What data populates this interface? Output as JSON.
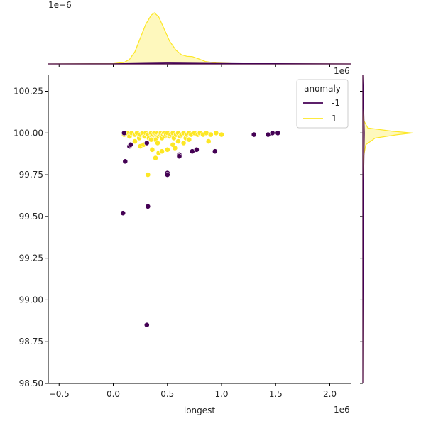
{
  "chart_data": {
    "type": "scatter",
    "title": "",
    "xlabel": "longest",
    "ylabel": "",
    "x_offset_text": "1e6",
    "y_offset_text": "",
    "top_marginal_offset_text": "1e−6",
    "right_marginal_offset_text": "1e6",
    "xlim": [
      -0.6,
      2.2
    ],
    "ylim": [
      98.5,
      100.35
    ],
    "x_ticks": [
      -0.5,
      0.0,
      0.5,
      1.0,
      1.5,
      2.0
    ],
    "x_tick_labels": [
      "−0.5",
      "0.0",
      "0.5",
      "1.0",
      "1.5",
      "2.0"
    ],
    "y_ticks": [
      98.5,
      98.75,
      99.0,
      99.25,
      99.5,
      99.75,
      100.0,
      100.25
    ],
    "y_tick_labels": [
      "98.50",
      "98.75",
      "99.00",
      "99.25",
      "99.50",
      "99.75",
      "100.00",
      "100.25"
    ],
    "grid": false,
    "legend": {
      "title": "anomaly",
      "placement": "top-right",
      "entries": [
        {
          "label": "-1",
          "color": "#440154"
        },
        {
          "label": "1",
          "color": "#fde725"
        }
      ]
    },
    "series": [
      {
        "name": "-1",
        "color": "#440154",
        "points": [
          [
            0.09,
            99.52
          ],
          [
            0.11,
            99.83
          ],
          [
            0.15,
            99.92
          ],
          [
            0.16,
            99.93
          ],
          [
            0.31,
            99.94
          ],
          [
            0.32,
            99.56
          ],
          [
            0.31,
            98.85
          ],
          [
            0.5,
            99.76
          ],
          [
            0.5,
            99.75
          ],
          [
            0.61,
            99.87
          ],
          [
            0.61,
            99.86
          ],
          [
            0.73,
            99.89
          ],
          [
            0.77,
            99.9
          ],
          [
            0.94,
            99.89
          ],
          [
            1.3,
            99.99
          ],
          [
            1.43,
            99.99
          ],
          [
            1.47,
            100.0
          ],
          [
            1.52,
            100.0
          ],
          [
            0.1,
            100.0
          ]
        ]
      },
      {
        "name": "1",
        "color": "#fde725",
        "points": [
          [
            0.1,
            99.99
          ],
          [
            0.13,
            100.0
          ],
          [
            0.15,
            99.98
          ],
          [
            0.17,
            100.0
          ],
          [
            0.2,
            99.99
          ],
          [
            0.22,
            100.0
          ],
          [
            0.24,
            99.97
          ],
          [
            0.25,
            99.99
          ],
          [
            0.27,
            100.0
          ],
          [
            0.29,
            99.98
          ],
          [
            0.3,
            100.0
          ],
          [
            0.32,
            99.99
          ],
          [
            0.33,
            99.97
          ],
          [
            0.35,
            100.0
          ],
          [
            0.36,
            99.98
          ],
          [
            0.37,
            99.99
          ],
          [
            0.38,
            100.0
          ],
          [
            0.39,
            99.96
          ],
          [
            0.4,
            99.99
          ],
          [
            0.41,
            100.0
          ],
          [
            0.42,
            99.98
          ],
          [
            0.43,
            99.99
          ],
          [
            0.44,
            100.0
          ],
          [
            0.45,
            99.97
          ],
          [
            0.46,
            99.99
          ],
          [
            0.47,
            100.0
          ],
          [
            0.48,
            99.98
          ],
          [
            0.49,
            99.99
          ],
          [
            0.5,
            100.0
          ],
          [
            0.52,
            99.98
          ],
          [
            0.53,
            99.99
          ],
          [
            0.55,
            100.0
          ],
          [
            0.56,
            99.97
          ],
          [
            0.58,
            99.99
          ],
          [
            0.6,
            100.0
          ],
          [
            0.62,
            99.98
          ],
          [
            0.63,
            99.99
          ],
          [
            0.65,
            100.0
          ],
          [
            0.67,
            99.97
          ],
          [
            0.68,
            99.99
          ],
          [
            0.7,
            100.0
          ],
          [
            0.72,
            99.99
          ],
          [
            0.75,
            100.0
          ],
          [
            0.78,
            99.99
          ],
          [
            0.8,
            100.0
          ],
          [
            0.83,
            99.99
          ],
          [
            0.86,
            100.0
          ],
          [
            0.9,
            99.99
          ],
          [
            0.95,
            100.0
          ],
          [
            1.0,
            99.99
          ],
          [
            0.25,
            99.92
          ],
          [
            0.28,
            99.93
          ],
          [
            0.36,
            99.9
          ],
          [
            0.39,
            99.85
          ],
          [
            0.42,
            99.88
          ],
          [
            0.45,
            99.89
          ],
          [
            0.5,
            99.9
          ],
          [
            0.55,
            99.93
          ],
          [
            0.57,
            99.91
          ],
          [
            0.65,
            99.94
          ],
          [
            0.7,
            99.96
          ],
          [
            0.88,
            99.95
          ],
          [
            0.32,
            99.75
          ],
          [
            0.2,
            99.95
          ],
          [
            0.35,
            99.96
          ],
          [
            0.6,
            99.95
          ],
          [
            0.41,
            99.94
          ]
        ]
      }
    ],
    "top_marginal": {
      "type": "kde",
      "series_yellow": [
        [
          -0.6,
          0
        ],
        [
          0.0,
          0.01
        ],
        [
          0.1,
          0.05
        ],
        [
          0.15,
          0.15
        ],
        [
          0.2,
          0.4
        ],
        [
          0.25,
          0.85
        ],
        [
          0.3,
          1.3
        ],
        [
          0.35,
          1.6
        ],
        [
          0.38,
          1.68
        ],
        [
          0.42,
          1.55
        ],
        [
          0.47,
          1.15
        ],
        [
          0.52,
          0.75
        ],
        [
          0.58,
          0.45
        ],
        [
          0.63,
          0.3
        ],
        [
          0.68,
          0.25
        ],
        [
          0.73,
          0.24
        ],
        [
          0.78,
          0.18
        ],
        [
          0.85,
          0.08
        ],
        [
          0.95,
          0.03
        ],
        [
          1.1,
          0.01
        ],
        [
          2.2,
          0
        ]
      ],
      "series_purple": [
        [
          -0.6,
          0
        ],
        [
          0.0,
          0.005
        ],
        [
          0.3,
          0.02
        ],
        [
          0.5,
          0.03
        ],
        [
          0.8,
          0.02
        ],
        [
          1.2,
          0.01
        ],
        [
          1.5,
          0.01
        ],
        [
          2.2,
          0
        ]
      ]
    },
    "right_marginal": {
      "type": "kde",
      "series_yellow": [
        [
          100.35,
          0
        ],
        [
          100.08,
          0.01
        ],
        [
          100.03,
          0.1
        ],
        [
          100.01,
          0.6
        ],
        [
          100.0,
          1.0
        ],
        [
          99.99,
          0.7
        ],
        [
          99.97,
          0.25
        ],
        [
          99.93,
          0.06
        ],
        [
          99.85,
          0.01
        ],
        [
          98.5,
          0
        ]
      ],
      "series_purple": [
        [
          100.35,
          0
        ],
        [
          100.0,
          0.03
        ],
        [
          99.8,
          0.02
        ],
        [
          99.5,
          0.01
        ],
        [
          98.5,
          0
        ]
      ]
    }
  }
}
